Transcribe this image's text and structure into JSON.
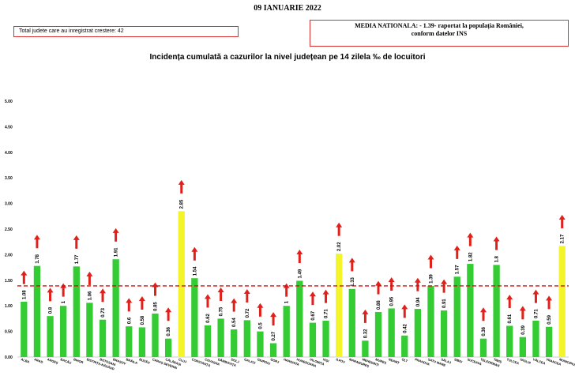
{
  "header": {
    "date": "09 IANUARIE 2022",
    "growth_counties": "Total judete care au inregistrat crestere: 42",
    "national_average_line1": "MEDIA NATIONALA: - 1.39- raportat la populația României,",
    "national_average_line2": "conform datelor INS"
  },
  "colors": {
    "bar_default": "#33cc33",
    "bar_highlight": "#f4f42a",
    "reference_line": "#cc1111",
    "trend_arrow": "#e0201a",
    "box_border": "#d93030"
  },
  "icons": {
    "trend": "arrow-up-icon"
  },
  "chart_data": {
    "type": "bar",
    "title": "Incidența cumulată a cazurilor la nivel județean pe 14 zilela ‰ de locuitori",
    "ylim": [
      0,
      5
    ],
    "yticks": [
      "0.00",
      "0.50",
      "1.00",
      "1.50",
      "2.00",
      "2.50",
      "3.00",
      "3.50",
      "4.00",
      "4.50",
      "5.00"
    ],
    "grid": false,
    "reference_line": {
      "value": 1.39,
      "style": "dashed"
    },
    "categories": [
      "ALBA",
      "ARAD",
      "ARGEȘ",
      "BACĂU",
      "BIHOR",
      "BISTRIȚA-NĂSĂUD",
      "BOTOȘANI",
      "BRAȘOV",
      "BRĂILA",
      "BUZĂU",
      "CARAȘ-SEVERIN",
      "CĂLĂRAȘI",
      "CLUJ",
      "CONSTANȚA",
      "COVASNA",
      "DÂMBOVIȚA",
      "DOLJ",
      "GALAȚI",
      "GIURGIU",
      "GORJ",
      "HARGHITA",
      "HUNEDOARA",
      "IALOMIȚA",
      "IAȘI",
      "ILFOV",
      "MARAMUREȘ",
      "MEHEDINȚI",
      "MUREȘ",
      "NEAMȚ",
      "OLT",
      "PRAHOVA",
      "SATU MARE",
      "SĂLAJ",
      "SIBIU",
      "SUCEAVA",
      "TELEORMAN",
      "TIMIȘ",
      "TULCEA",
      "VASLUI",
      "VÂLCEA",
      "VRANCEA",
      "MUNICIPIUL BUCUREȘTI"
    ],
    "values": [
      1.08,
      1.78,
      0.8,
      1,
      1.77,
      1.06,
      0.73,
      1.91,
      0.6,
      0.58,
      0.85,
      0.36,
      2.85,
      1.54,
      0.62,
      0.75,
      0.54,
      0.72,
      0.5,
      0.27,
      1,
      1.49,
      0.67,
      0.71,
      2.02,
      1.33,
      0.32,
      0.88,
      0.95,
      0.42,
      0.94,
      1.39,
      0.91,
      1.57,
      1.82,
      0.36,
      1.8,
      0.61,
      0.39,
      0.71,
      0.59,
      2.17
    ],
    "highlight": [
      false,
      false,
      false,
      false,
      false,
      false,
      false,
      false,
      false,
      false,
      false,
      false,
      true,
      false,
      false,
      false,
      false,
      false,
      false,
      false,
      false,
      false,
      false,
      false,
      true,
      false,
      false,
      false,
      false,
      false,
      false,
      false,
      false,
      false,
      false,
      false,
      false,
      false,
      false,
      false,
      false,
      true
    ],
    "trend_up": [
      true,
      true,
      true,
      true,
      true,
      true,
      true,
      true,
      true,
      true,
      true,
      true,
      true,
      true,
      true,
      true,
      true,
      true,
      true,
      true,
      true,
      true,
      true,
      true,
      true,
      true,
      true,
      true,
      true,
      true,
      true,
      true,
      true,
      true,
      true,
      true,
      true,
      true,
      true,
      true,
      true,
      true
    ]
  }
}
